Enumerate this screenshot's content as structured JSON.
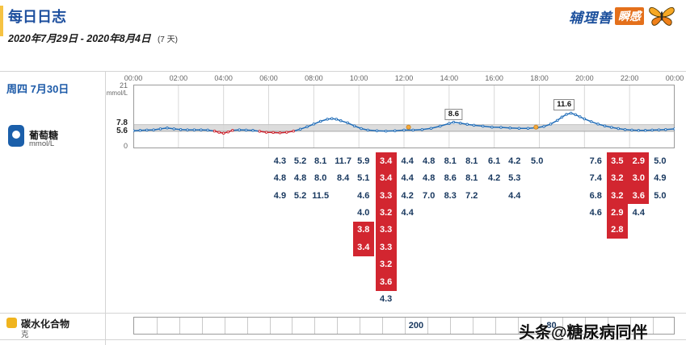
{
  "header": {
    "title": "每日日志",
    "date_range": "2020年7月29日 - 2020年8月4日",
    "days": "(7 天)",
    "brand": {
      "name": "辅理善",
      "product": "瞬感"
    }
  },
  "day_label": "周四 7月30日",
  "sections": {
    "glucose": {
      "label": "葡萄糖",
      "unit": "mmol/L"
    },
    "carbs": {
      "label": "碳水化合物",
      "unit": "克"
    }
  },
  "watermark": "头条@糖尿病同伴",
  "chart_data": {
    "type": "line",
    "x_ticks": [
      "00:00",
      "02:00",
      "04:00",
      "06:00",
      "08:00",
      "10:00",
      "12:00",
      "14:00",
      "16:00",
      "18:00",
      "20:00",
      "22:00",
      "00:00"
    ],
    "y_axis": {
      "top": "21",
      "unit": "mmol/L",
      "high": "7.8",
      "low": "5.6",
      "bottom": "0"
    },
    "ylim": [
      0,
      21
    ],
    "target_range": [
      5.6,
      7.8
    ],
    "line_color": "#1F6CB8",
    "low_color": "#D0242C",
    "series_points": [
      [
        0,
        5.8
      ],
      [
        0.3,
        5.9
      ],
      [
        0.6,
        6.0
      ],
      [
        0.9,
        6.1
      ],
      [
        1.2,
        6.4
      ],
      [
        1.5,
        6.7
      ],
      [
        1.8,
        6.4
      ],
      [
        2.1,
        6.2
      ],
      [
        2.4,
        6.1
      ],
      [
        2.7,
        6.1
      ],
      [
        3.0,
        6.1
      ],
      [
        3.3,
        6.0
      ],
      [
        3.6,
        5.7
      ],
      [
        3.8,
        5.3
      ],
      [
        4.0,
        5.0
      ],
      [
        4.2,
        5.4
      ],
      [
        4.4,
        5.9
      ],
      [
        4.7,
        6.1
      ],
      [
        5.0,
        6.0
      ],
      [
        5.3,
        5.9
      ],
      [
        5.6,
        5.6
      ],
      [
        5.9,
        5.3
      ],
      [
        6.2,
        5.2
      ],
      [
        6.5,
        5.1
      ],
      [
        6.8,
        5.3
      ],
      [
        7.1,
        5.7
      ],
      [
        7.4,
        6.3
      ],
      [
        7.7,
        7.1
      ],
      [
        8.0,
        8.0
      ],
      [
        8.3,
        8.9
      ],
      [
        8.6,
        9.6
      ],
      [
        8.8,
        9.8
      ],
      [
        9.0,
        9.6
      ],
      [
        9.2,
        9.1
      ],
      [
        9.5,
        8.4
      ],
      [
        9.8,
        7.4
      ],
      [
        10.1,
        6.5
      ],
      [
        10.4,
        6.0
      ],
      [
        10.8,
        5.8
      ],
      [
        11.2,
        5.7
      ],
      [
        11.6,
        5.8
      ],
      [
        12.0,
        6.0
      ],
      [
        12.4,
        6.0
      ],
      [
        12.8,
        6.2
      ],
      [
        13.2,
        6.6
      ],
      [
        13.6,
        7.3
      ],
      [
        14.0,
        8.2
      ],
      [
        14.2,
        8.6
      ],
      [
        14.5,
        8.3
      ],
      [
        14.8,
        7.9
      ],
      [
        15.1,
        7.6
      ],
      [
        15.5,
        7.3
      ],
      [
        15.9,
        7.0
      ],
      [
        16.3,
        6.9
      ],
      [
        16.7,
        6.7
      ],
      [
        17.1,
        6.6
      ],
      [
        17.5,
        6.6
      ],
      [
        17.9,
        6.8
      ],
      [
        18.2,
        7.2
      ],
      [
        18.5,
        8.0
      ],
      [
        18.8,
        9.2
      ],
      [
        19.0,
        10.3
      ],
      [
        19.2,
        11.2
      ],
      [
        19.4,
        11.6
      ],
      [
        19.6,
        11.1
      ],
      [
        19.8,
        10.4
      ],
      [
        20.0,
        9.7
      ],
      [
        20.3,
        8.8
      ],
      [
        20.6,
        8.0
      ],
      [
        20.9,
        7.4
      ],
      [
        21.2,
        6.9
      ],
      [
        21.5,
        6.5
      ],
      [
        21.8,
        6.2
      ],
      [
        22.1,
        6.0
      ],
      [
        22.4,
        5.9
      ],
      [
        22.7,
        5.9
      ],
      [
        23.0,
        6.0
      ],
      [
        23.3,
        6.1
      ],
      [
        23.6,
        6.2
      ],
      [
        24.0,
        6.4
      ]
    ],
    "low_ranges": [
      [
        3.55,
        4.45
      ],
      [
        5.55,
        7.15
      ]
    ],
    "annotations": [
      {
        "hour": 14.2,
        "value": 8.6,
        "label": "8.6"
      },
      {
        "hour": 19.1,
        "value": 11.6,
        "label": "11.6"
      }
    ],
    "note_markers": [
      {
        "hour": 12.2,
        "display_value": 7.0
      },
      {
        "hour": 17.85,
        "display_value": 7.0
      }
    ]
  },
  "glucose_readings": [
    {
      "hour": 6.5,
      "values": [
        {
          "v": "4.3"
        },
        {
          "v": "4.8"
        },
        {
          "v": "4.9"
        }
      ]
    },
    {
      "hour": 7.4,
      "values": [
        {
          "v": "5.2"
        },
        {
          "v": "4.8"
        },
        {
          "v": "5.2"
        }
      ]
    },
    {
      "hour": 8.3,
      "values": [
        {
          "v": "8.1"
        },
        {
          "v": "8.0"
        },
        {
          "v": "11.5"
        }
      ]
    },
    {
      "hour": 9.3,
      "values": [
        {
          "v": "11.7"
        },
        {
          "v": "8.4"
        }
      ]
    },
    {
      "hour": 10.2,
      "values": [
        {
          "v": "5.9"
        },
        {
          "v": "5.1"
        },
        {
          "v": "4.6"
        },
        {
          "v": "4.0"
        },
        {
          "v": "3.8",
          "low": true
        },
        {
          "v": "3.4",
          "low": true
        }
      ]
    },
    {
      "hour": 11.2,
      "values": [
        {
          "v": "3.4",
          "low": true
        },
        {
          "v": "3.4",
          "low": true
        },
        {
          "v": "3.3",
          "low": true
        },
        {
          "v": "3.2",
          "low": true
        },
        {
          "v": "3.3",
          "low": true
        },
        {
          "v": "3.3",
          "low": true
        },
        {
          "v": "3.2",
          "low": true
        },
        {
          "v": "3.6",
          "low": true
        },
        {
          "v": "4.3"
        }
      ]
    },
    {
      "hour": 12.15,
      "values": [
        {
          "v": "4.4"
        },
        {
          "v": "4.4"
        },
        {
          "v": "4.2"
        },
        {
          "v": "4.4"
        }
      ]
    },
    {
      "hour": 13.1,
      "values": [
        {
          "v": "4.8"
        },
        {
          "v": "4.8"
        },
        {
          "v": "7.0"
        }
      ]
    },
    {
      "hour": 14.05,
      "values": [
        {
          "v": "8.1"
        },
        {
          "v": "8.6"
        },
        {
          "v": "8.3"
        }
      ]
    },
    {
      "hour": 15.0,
      "values": [
        {
          "v": "8.1"
        },
        {
          "v": "8.1"
        },
        {
          "v": "7.2"
        }
      ]
    },
    {
      "hour": 16.0,
      "values": [
        {
          "v": "6.1"
        },
        {
          "v": "4.2"
        }
      ]
    },
    {
      "hour": 16.9,
      "values": [
        {
          "v": "4.2"
        },
        {
          "v": "5.3"
        },
        {
          "v": "4.4"
        }
      ]
    },
    {
      "hour": 17.9,
      "values": [
        {
          "v": "5.0"
        }
      ]
    },
    {
      "hour": 20.5,
      "values": [
        {
          "v": "7.6"
        },
        {
          "v": "7.4"
        },
        {
          "v": "6.8"
        },
        {
          "v": "4.6"
        }
      ]
    },
    {
      "hour": 21.45,
      "values": [
        {
          "v": "3.5",
          "low": true
        },
        {
          "v": "3.2",
          "low": true
        },
        {
          "v": "3.2",
          "low": true
        },
        {
          "v": "2.9",
          "low": true
        },
        {
          "v": "2.8",
          "low": true
        }
      ]
    },
    {
      "hour": 22.4,
      "values": [
        {
          "v": "2.9",
          "low": true
        },
        {
          "v": "3.0",
          "low": true
        },
        {
          "v": "3.6",
          "low": true
        },
        {
          "v": "4.4"
        }
      ]
    },
    {
      "hour": 23.35,
      "values": [
        {
          "v": "5.0"
        },
        {
          "v": "4.9"
        },
        {
          "v": "5.0"
        }
      ]
    }
  ],
  "carbohydrates": {
    "entries": [
      {
        "hour": 12,
        "value": "200"
      },
      {
        "hour": 18,
        "value": "80"
      }
    ]
  }
}
